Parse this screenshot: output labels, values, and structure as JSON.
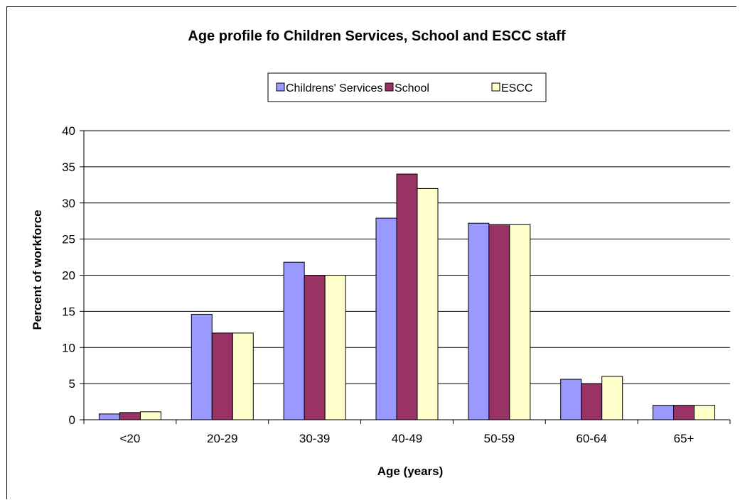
{
  "chart_data": {
    "type": "bar",
    "title": "Age profile fo Children Services, School and ESCC staff",
    "xlabel": "Age (years)",
    "ylabel": "Percent of workforce",
    "ylim": [
      0,
      40
    ],
    "yticks": [
      0,
      5,
      10,
      15,
      20,
      25,
      30,
      35,
      40
    ],
    "grid": true,
    "legend_position": "top",
    "categories": [
      "<20",
      "20-29",
      "30-39",
      "40-49",
      "50-59",
      "60-64",
      "65+"
    ],
    "series": [
      {
        "name": "Childrens' Services",
        "color": "#9999ff",
        "values": [
          0.8,
          14.6,
          21.8,
          27.9,
          27.2,
          5.6,
          2.0
        ]
      },
      {
        "name": "School",
        "color": "#993366",
        "values": [
          1.0,
          12.0,
          20.0,
          34.0,
          27.0,
          5.0,
          2.0
        ]
      },
      {
        "name": "ESCC",
        "color": "#ffffcc",
        "values": [
          1.1,
          12.0,
          20.0,
          32.0,
          27.0,
          6.0,
          2.0
        ]
      }
    ]
  }
}
